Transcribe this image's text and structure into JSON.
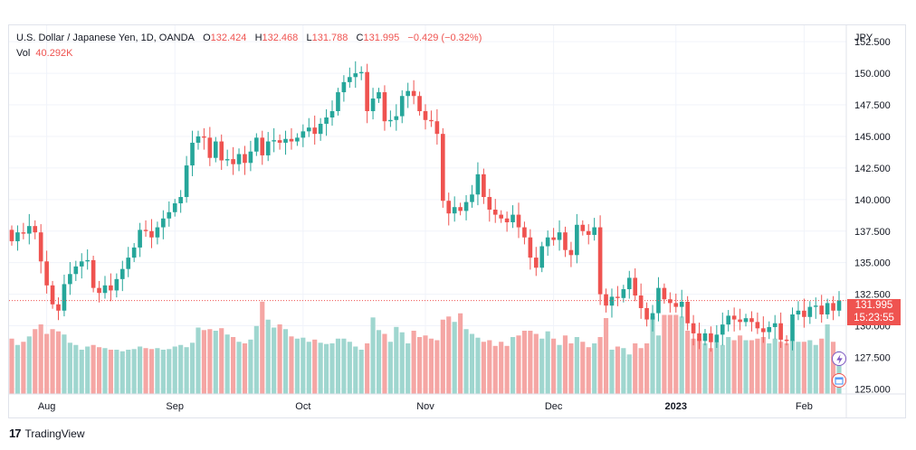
{
  "legend": {
    "symbol": "U.S. Dollar / Japanese Yen, 1D, OANDA",
    "o_label": "O",
    "o_value": "132.424",
    "h_label": "H",
    "h_value": "132.468",
    "l_label": "L",
    "l_value": "131.788",
    "c_label": "C",
    "c_value": "131.995",
    "change": "−0.429 (−0.32%)",
    "vol_label": "Vol",
    "vol_value": "40.292K"
  },
  "price_tag": {
    "price": "131.995",
    "countdown": "15:23:55"
  },
  "footer": {
    "brand": "TradingView"
  },
  "colors": {
    "up": "#26a69a",
    "down": "#ef5350",
    "vol_up": "#9fd6cf",
    "vol_down": "#f5a6a4",
    "grid": "#f0f3fa"
  },
  "chart_data": {
    "type": "candlestick",
    "y_unit": "JPY",
    "ylim": [
      124.6,
      153.8
    ],
    "y_ticks": [
      125.0,
      127.5,
      130.0,
      132.5,
      135.0,
      137.5,
      140.0,
      142.5,
      145.0,
      147.5,
      150.0,
      152.5
    ],
    "y_tick_labels": [
      "125.000",
      "127.500",
      "130.000",
      "132.500",
      "135.000",
      "137.500",
      "140.000",
      "142.500",
      "145.000",
      "147.500",
      "150.000",
      "152.500"
    ],
    "x_ticks": [
      {
        "label": "Aug",
        "index": 6
      },
      {
        "label": "Sep",
        "index": 28
      },
      {
        "label": "Oct",
        "index": 50
      },
      {
        "label": "Nov",
        "index": 71
      },
      {
        "label": "Dec",
        "index": 93
      },
      {
        "label": "2023",
        "index": 114
      },
      {
        "label": "Feb",
        "index": 136
      }
    ],
    "last_price": 131.995,
    "closes": [
      136.7,
      137.4,
      137.3,
      137.9,
      137.4,
      135.1,
      133.2,
      131.7,
      131.2,
      133.3,
      134.1,
      134.7,
      135.1,
      135.2,
      133.0,
      132.6,
      133.2,
      132.8,
      133.7,
      134.5,
      135.4,
      136.2,
      137.6,
      137.5,
      137.0,
      137.8,
      138.5,
      139.0,
      139.7,
      140.2,
      142.7,
      144.5,
      145.0,
      144.9,
      143.3,
      144.6,
      143.1,
      143.2,
      142.8,
      143.6,
      142.9,
      143.8,
      144.9,
      143.5,
      144.6,
      144.7,
      144.5,
      144.8,
      144.6,
      144.9,
      145.4,
      145.7,
      145.2,
      146.0,
      146.5,
      147.0,
      148.5,
      149.3,
      149.7,
      150.0,
      150.1,
      147.0,
      148.0,
      148.5,
      146.2,
      146.3,
      146.6,
      148.2,
      148.6,
      148.2,
      147.0,
      146.3,
      146.2,
      145.2,
      139.9,
      138.9,
      139.4,
      139.1,
      139.8,
      140.4,
      142.0,
      140.2,
      139.2,
      138.8,
      138.5,
      138.2,
      138.8,
      137.8,
      137.0,
      135.4,
      134.6,
      136.3,
      137.0,
      136.8,
      137.4,
      136.0,
      135.6,
      138.0,
      137.5,
      137.2,
      137.8,
      132.5,
      131.6,
      132.3,
      132.2,
      132.9,
      133.8,
      132.4,
      131.4,
      130.5,
      131.0,
      133.0,
      132.1,
      131.8,
      131.5,
      131.9,
      130.2,
      129.4,
      128.8,
      129.4,
      128.7,
      129.3,
      130.1,
      130.8,
      130.5,
      130.3,
      130.6,
      130.3,
      129.8,
      129.5,
      129.9,
      130.2,
      128.9,
      128.8,
      130.9,
      131.2,
      130.7,
      131.5,
      131.6,
      130.9,
      131.8,
      131.2,
      132.0
    ],
    "volumes": [
      17.5,
      15.5,
      16.5,
      18.2,
      20.5,
      22.0,
      19.0,
      20.5,
      19.8,
      18.8,
      16.2,
      15.5,
      14.0,
      15.0,
      15.5,
      14.8,
      14.5,
      14.0,
      14.0,
      13.5,
      14.0,
      14.2,
      15.0,
      14.5,
      14.2,
      14.5,
      14.0,
      14.2,
      15.0,
      15.5,
      14.8,
      16.2,
      21.0,
      20.2,
      20.5,
      20.0,
      20.8,
      18.8,
      18.0,
      16.5,
      16.0,
      17.2,
      21.5,
      29.2,
      23.5,
      21.0,
      22.0,
      20.5,
      18.2,
      17.5,
      17.8,
      16.5,
      17.2,
      16.2,
      15.8,
      16.0,
      17.5,
      17.5,
      16.5,
      15.0,
      14.0,
      16.0,
      24.2,
      20.2,
      19.0,
      16.5,
      21.2,
      19.5,
      16.0,
      20.0,
      18.0,
      18.5,
      17.5,
      17.0,
      23.5,
      24.5,
      22.8,
      25.5,
      20.5,
      19.0,
      17.8,
      16.5,
      17.0,
      15.2,
      16.5,
      15.2,
      18.0,
      18.5,
      20.0,
      20.0,
      19.0,
      17.5,
      19.8,
      17.5,
      15.5,
      18.5,
      16.0,
      18.0,
      16.5,
      14.8,
      16.0,
      18.0,
      24.0,
      14.0,
      15.0,
      14.5,
      12.5,
      16.0,
      14.5,
      16.0,
      24.5,
      18.5,
      25.0,
      25.0,
      25.0,
      24.5,
      20.0,
      17.5,
      17.5,
      16.0,
      14.5,
      16.5,
      15.5,
      18.0,
      17.0,
      18.5,
      17.0,
      17.0,
      17.5,
      18.0,
      16.0,
      17.5,
      16.5,
      16.0,
      17.0,
      16.5,
      16.5,
      17.0,
      15.5,
      17.5,
      22.0,
      16.5,
      13.5
    ]
  }
}
